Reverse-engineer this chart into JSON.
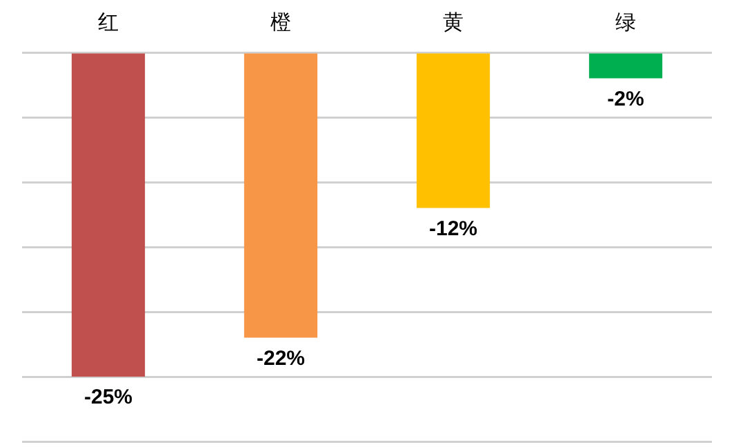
{
  "chart_data": {
    "type": "bar",
    "categories": [
      "红",
      "橙",
      "黄",
      "绿"
    ],
    "values": [
      -25,
      -22,
      -12,
      -2
    ],
    "colors": [
      "#c0504d",
      "#f79646",
      "#ffc000",
      "#00b050"
    ],
    "value_labels": [
      "-25%",
      "-22%",
      "-12%",
      "-2%"
    ],
    "ylim": [
      -30,
      0
    ],
    "yticks": [
      {
        "value": -30,
        "label": null
      },
      {
        "value": -25,
        "label": null
      },
      {
        "value": -20,
        "label": null
      },
      {
        "value": -15,
        "label": null
      },
      {
        "value": -10,
        "label": null
      },
      {
        "value": -5,
        "label": null
      },
      {
        "value": 0,
        "label": null
      }
    ],
    "grid": "y",
    "legend": false,
    "tick_labels": "x"
  }
}
